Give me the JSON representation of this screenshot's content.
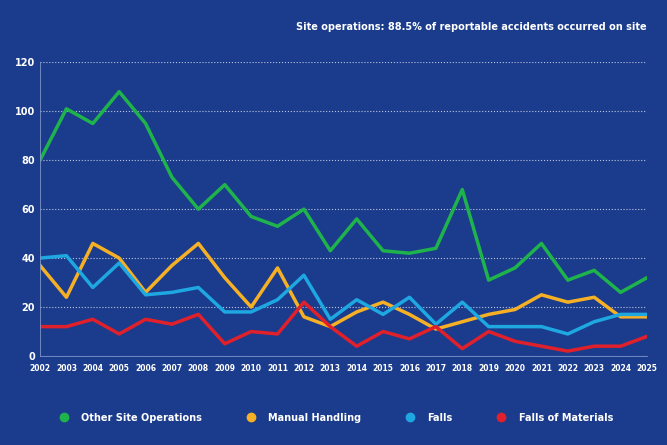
{
  "chart_data": {
    "type": "line",
    "title": "Site operations: 88.5% of reportable accidents occurred on site",
    "x": [
      2002,
      2003,
      2004,
      2005,
      2006,
      2007,
      2008,
      2009,
      2010,
      2011,
      2012,
      2013,
      2014,
      2015,
      2016,
      2017,
      2018,
      2019,
      2020,
      2021,
      2022,
      2023,
      2024,
      2025
    ],
    "series": [
      {
        "name": "Other Site Operations",
        "color": "#1fb34b",
        "values": [
          80,
          101,
          95,
          108,
          95,
          73,
          60,
          70,
          57,
          53,
          60,
          43,
          56,
          43,
          42,
          44,
          68,
          31,
          36,
          46,
          31,
          35,
          26,
          32
        ]
      },
      {
        "name": "Manual Handling",
        "color": "#f5b025",
        "values": [
          37,
          24,
          46,
          40,
          26,
          37,
          46,
          32,
          20,
          36,
          16,
          12,
          18,
          22,
          17,
          11,
          14,
          17,
          19,
          25,
          22,
          24,
          16,
          16
        ]
      },
      {
        "name": "Falls",
        "color": "#1ea7e1",
        "values": [
          40,
          41,
          28,
          38,
          25,
          26,
          28,
          18,
          18,
          23,
          33,
          15,
          23,
          17,
          24,
          13,
          22,
          12,
          12,
          12,
          9,
          14,
          17,
          17
        ]
      },
      {
        "name": "Falls of Materials",
        "color": "#e0202a",
        "values": [
          12,
          12,
          15,
          9,
          15,
          13,
          17,
          5,
          10,
          9,
          22,
          12,
          4,
          10,
          7,
          12,
          3,
          10,
          6,
          4,
          2,
          4,
          4,
          8
        ]
      }
    ],
    "xlim": [
      2002,
      2025
    ],
    "xticks": [
      2002,
      2003,
      2004,
      2005,
      2006,
      2007,
      2008,
      2009,
      2010,
      2011,
      2012,
      2013,
      2014,
      2015,
      2016,
      2017,
      2018,
      2019,
      2020,
      2021,
      2022,
      2023,
      2024,
      2025
    ],
    "ylim": [
      0,
      120
    ],
    "yticks": [
      0,
      20,
      40,
      60,
      80,
      100,
      120
    ],
    "grid": true,
    "legend": "lower center"
  }
}
